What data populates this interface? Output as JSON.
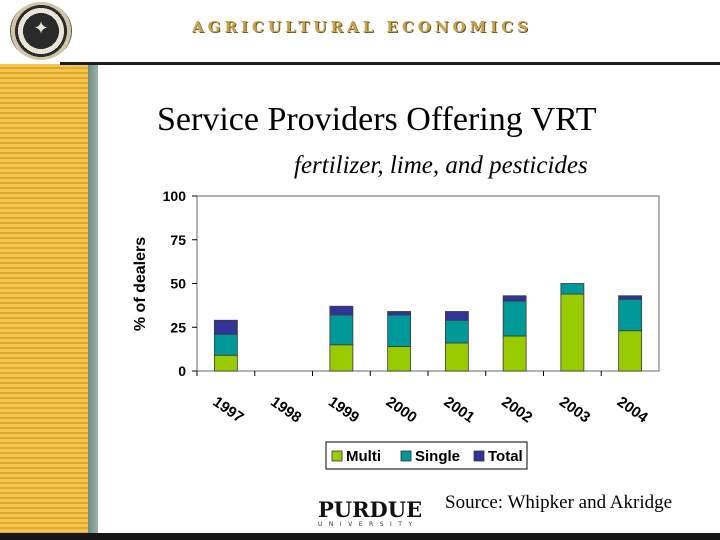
{
  "header": {
    "text": "AGRICULTURAL ECONOMICS",
    "logo_icon": "university-seal-icon"
  },
  "slide": {
    "title": "Service Providers Offering VRT",
    "subtitle": "fertilizer, lime, and pesticides",
    "source": "Source:  Whipker and Akridge"
  },
  "footer": {
    "logo_main": "PURDUE",
    "logo_sub": "UNIVERSITY"
  },
  "colors": {
    "multi": "#99cc00",
    "single": "#009999",
    "total": "#333399",
    "stripe": "#f3c74f",
    "header_gold": "#c9a14a"
  },
  "chart_data": {
    "type": "bar",
    "stacked": true,
    "title": "Service Providers Offering VRT",
    "subtitle": "fertilizer, lime, and pesticides",
    "xlabel": "",
    "ylabel": "% of dealers",
    "ylim": [
      0,
      100
    ],
    "yticks": [
      0,
      25,
      50,
      75,
      100
    ],
    "grid": false,
    "legend_position": "bottom",
    "categories": [
      "1997",
      "1998",
      "1999",
      "2000",
      "2001",
      "2002",
      "2003",
      "2004"
    ],
    "series": [
      {
        "name": "Multi",
        "color": "#99cc00",
        "values": [
          9,
          null,
          15,
          14,
          16,
          20,
          44,
          23
        ]
      },
      {
        "name": "Single",
        "color": "#009999",
        "values": [
          12,
          null,
          17,
          18,
          13,
          20,
          6,
          18
        ]
      },
      {
        "name": "Total",
        "color": "#333399",
        "values": [
          8,
          null,
          5,
          2,
          5,
          3,
          0,
          2
        ]
      }
    ]
  }
}
